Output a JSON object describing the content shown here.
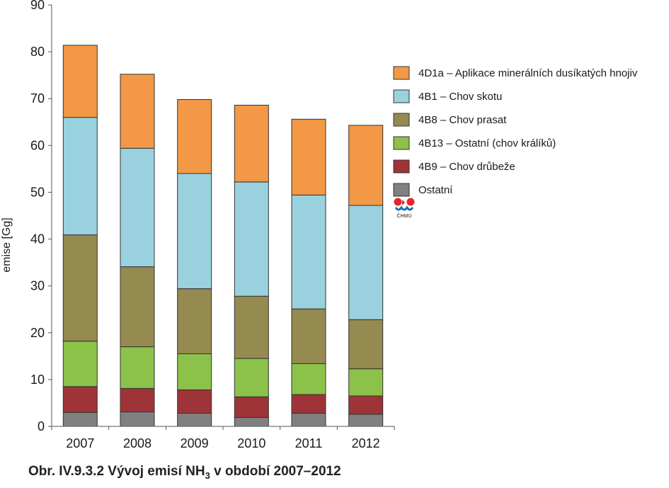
{
  "chart_data": {
    "type": "bar",
    "stacked": true,
    "categories": [
      "2007",
      "2008",
      "2009",
      "2010",
      "2011",
      "2012"
    ],
    "ylabel": "emise [Gg]",
    "ylim": [
      0,
      90
    ],
    "yticks": [
      0,
      10,
      20,
      30,
      40,
      50,
      60,
      70,
      80,
      90
    ],
    "grid": false,
    "legend_position": "right",
    "series": [
      {
        "name": "Ostatní",
        "color": "#808080",
        "values": [
          3.0,
          3.1,
          2.8,
          1.9,
          2.8,
          2.6
        ]
      },
      {
        "name": "4B9 – Chov drůbeže",
        "color": "#9e3437",
        "values": [
          5.5,
          5.0,
          5.0,
          4.4,
          4.0,
          3.9
        ]
      },
      {
        "name": "4B13 – Ostatní (chov králíků)",
        "color": "#8cc24a",
        "values": [
          9.7,
          8.9,
          7.7,
          8.2,
          6.6,
          5.8
        ]
      },
      {
        "name": "4B8 – Chov prasat",
        "color": "#958a50",
        "values": [
          22.7,
          17.1,
          13.9,
          13.3,
          11.7,
          10.5
        ]
      },
      {
        "name": "4B1 – Chov skotu",
        "color": "#9ad1df",
        "values": [
          25.1,
          25.3,
          24.6,
          24.4,
          24.3,
          24.4
        ]
      },
      {
        "name": "4D1a – Aplikace minerálních dusíkatých hnojiv",
        "color": "#f29847",
        "values": [
          15.4,
          15.8,
          15.8,
          16.4,
          16.2,
          17.1
        ]
      }
    ]
  },
  "logo_text": "ČHMÚ",
  "caption": {
    "prefix": "Obr. IV.9.3.2  Vývoj emisí NH",
    "subscript": "3",
    "suffix": " v období 2007–2012"
  }
}
